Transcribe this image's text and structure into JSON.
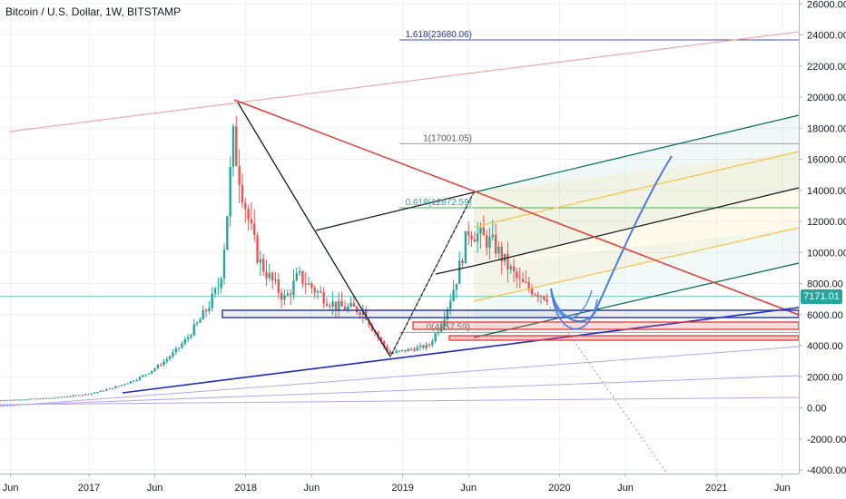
{
  "title": "Bitcoin / U.S. Dollar, 1W, BITSTAMP",
  "current_price": "7171.01",
  "colors": {
    "up": "#26a69a",
    "down": "#ef5350",
    "grid": "#eef0f3",
    "badge": "#26a69a"
  },
  "chart_data": {
    "type": "candlestick",
    "symbol": "Bitcoin / U.S. Dollar",
    "interval": "1W",
    "exchange": "BITSTAMP",
    "y_ticks": [
      "26000.00",
      "24000.00",
      "22000.00",
      "20000.00",
      "18000.00",
      "16000.00",
      "14000.00",
      "12000.00",
      "10000.00",
      "8000.00",
      "6000.00",
      "4000.00",
      "2000.00",
      "0.00",
      "-2000.00",
      "-4000.00"
    ],
    "y_tick_values": [
      26000,
      24000,
      22000,
      20000,
      18000,
      16000,
      14000,
      12000,
      10000,
      8000,
      6000,
      4000,
      2000,
      0,
      -2000,
      -4000
    ],
    "x_ticks": [
      "Jun",
      "2017",
      "Jun",
      "2018",
      "Jun",
      "2019",
      "Jun",
      "2020",
      "Jun",
      "2021",
      "Jun"
    ],
    "ylim": [
      -4000,
      26500
    ],
    "annotations": [
      {
        "label": "1.618(23680.06)",
        "value": 23680.06
      },
      {
        "label": "1(17001.05)",
        "value": 17001.05
      },
      {
        "label": "0.618(12872.59)",
        "value": 12872.59
      },
      {
        "label": "0(4857.59)",
        "value": 4857.59
      }
    ],
    "last_price": 7171.01,
    "price_anchors": [
      {
        "date": "2016-05",
        "price": 450
      },
      {
        "date": "2016-10",
        "price": 620
      },
      {
        "date": "2017-01",
        "price": 900
      },
      {
        "date": "2017-05",
        "price": 2000
      },
      {
        "date": "2017-08",
        "price": 4000
      },
      {
        "date": "2017-11",
        "price": 8000
      },
      {
        "date": "2017-12",
        "price": 17500
      },
      {
        "date": "2018-02",
        "price": 9500
      },
      {
        "date": "2018-04",
        "price": 7000
      },
      {
        "date": "2018-05",
        "price": 8500
      },
      {
        "date": "2018-08",
        "price": 6500
      },
      {
        "date": "2018-10",
        "price": 6300
      },
      {
        "date": "2018-12",
        "price": 3500
      },
      {
        "date": "2019-03",
        "price": 4000
      },
      {
        "date": "2019-05",
        "price": 8000
      },
      {
        "date": "2019-06",
        "price": 11500
      },
      {
        "date": "2019-08",
        "price": 10500
      },
      {
        "date": "2019-10",
        "price": 8000
      },
      {
        "date": "2019-12",
        "price": 7171
      }
    ]
  }
}
